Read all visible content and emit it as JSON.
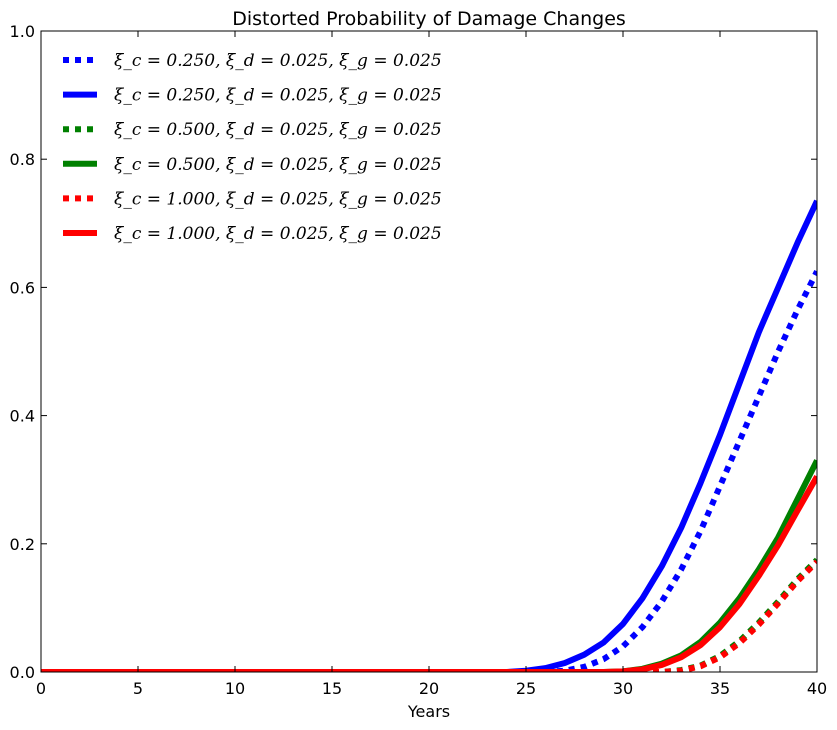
{
  "chart_data": {
    "type": "line",
    "title": "Distorted Probability of Damage Changes",
    "xlabel": "Years",
    "ylabel": "",
    "xlim": [
      0,
      40
    ],
    "ylim": [
      0.0,
      1.0
    ],
    "xticks": [
      0,
      5,
      10,
      15,
      20,
      25,
      30,
      35,
      40
    ],
    "xtick_labels": [
      "0",
      "5",
      "10",
      "15",
      "20",
      "25",
      "30",
      "35",
      "40"
    ],
    "yticks": [
      0.0,
      0.2,
      0.4,
      0.6,
      0.8,
      1.0
    ],
    "ytick_labels": [
      "0.0",
      "0.2",
      "0.4",
      "0.6",
      "0.8",
      "1.0"
    ],
    "grid": false,
    "legend_position": "top-left",
    "x": [
      0,
      5,
      10,
      15,
      20,
      22,
      24,
      25,
      26,
      27,
      28,
      29,
      30,
      31,
      32,
      33,
      34,
      35,
      36,
      37,
      38,
      39,
      40
    ],
    "series": [
      {
        "name": "ξ_c = 0.250, ξ_d = 0.025, ξ_g = 0.025",
        "style": "dotted",
        "color": "#0000ff",
        "values": [
          0,
          0,
          0,
          0,
          0,
          0,
          0,
          0,
          0,
          0.002,
          0.008,
          0.02,
          0.04,
          0.07,
          0.11,
          0.16,
          0.22,
          0.29,
          0.36,
          0.43,
          0.5,
          0.565,
          0.625
        ]
      },
      {
        "name": "ξ_c = 0.250, ξ_d = 0.025, ξ_g = 0.025",
        "style": "solid",
        "color": "#0000ff",
        "values": [
          0,
          0,
          0,
          0,
          0,
          0,
          0,
          0.002,
          0.006,
          0.014,
          0.027,
          0.046,
          0.075,
          0.115,
          0.165,
          0.225,
          0.295,
          0.37,
          0.45,
          0.53,
          0.6,
          0.67,
          0.735
        ]
      },
      {
        "name": "ξ_c = 0.500, ξ_d = 0.025, ξ_g = 0.025",
        "style": "dotted",
        "color": "#008000",
        "values": [
          0,
          0,
          0,
          0,
          0,
          0,
          0,
          0,
          0,
          0,
          0,
          0,
          0,
          0,
          0,
          0.003,
          0.01,
          0.025,
          0.048,
          0.077,
          0.11,
          0.145,
          0.175
        ]
      },
      {
        "name": "ξ_c = 0.500, ξ_d = 0.025, ξ_g = 0.025",
        "style": "solid",
        "color": "#008000",
        "values": [
          0,
          0,
          0,
          0,
          0,
          0,
          0,
          0,
          0,
          0,
          0,
          0,
          0.001,
          0.005,
          0.013,
          0.026,
          0.047,
          0.077,
          0.115,
          0.16,
          0.21,
          0.27,
          0.33
        ]
      },
      {
        "name": "ξ_c = 1.000, ξ_d = 0.025, ξ_g = 0.025",
        "style": "dotted",
        "color": "#ff0000",
        "values": [
          0,
          0,
          0,
          0,
          0,
          0,
          0,
          0,
          0,
          0,
          0,
          0,
          0,
          0,
          0,
          0.002,
          0.009,
          0.023,
          0.045,
          0.074,
          0.107,
          0.142,
          0.172
        ]
      },
      {
        "name": "ξ_c = 1.000, ξ_d = 0.025, ξ_g = 0.025",
        "style": "solid",
        "color": "#ff0000",
        "values": [
          0,
          0,
          0,
          0,
          0,
          0,
          0,
          0,
          0,
          0,
          0,
          0,
          0.001,
          0.004,
          0.011,
          0.023,
          0.042,
          0.07,
          0.106,
          0.15,
          0.198,
          0.252,
          0.305
        ]
      }
    ]
  }
}
